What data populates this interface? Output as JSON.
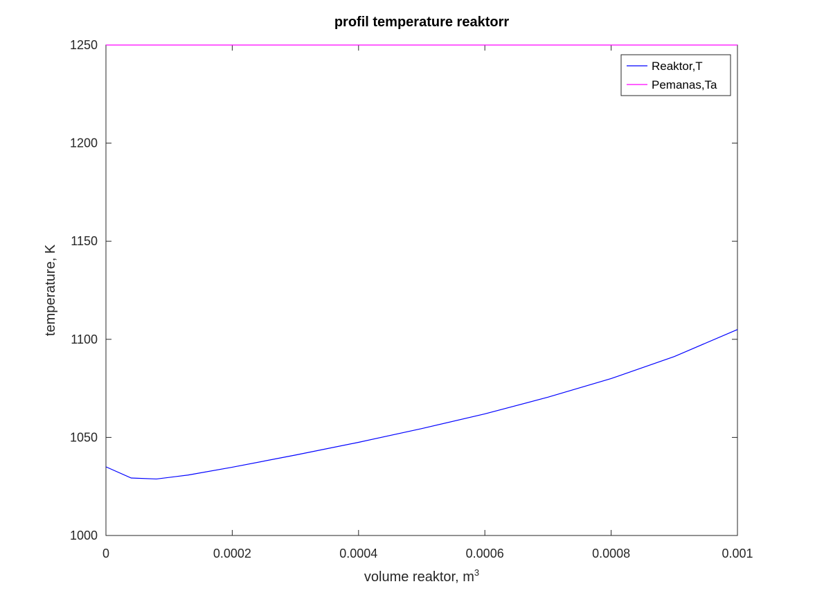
{
  "chart_data": {
    "type": "line",
    "title": "profil temperature reaktorr",
    "xlabel": "volume reaktor, m",
    "xlabel_superscript": "3",
    "ylabel": "temperature, K",
    "xlim": [
      0,
      0.001
    ],
    "ylim": [
      1000,
      1250
    ],
    "x_ticks": [
      0,
      0.0002,
      0.0004,
      0.0006,
      0.0008,
      0.001
    ],
    "x_tick_labels": [
      "0",
      "0.0002",
      "0.0004",
      "0.0006",
      "0.0008",
      "0.001"
    ],
    "y_ticks": [
      1000,
      1050,
      1100,
      1150,
      1200,
      1250
    ],
    "y_tick_labels": [
      "1000",
      "1050",
      "1100",
      "1150",
      "1200",
      "1250"
    ],
    "grid": false,
    "legend_position": "top-right",
    "series": [
      {
        "name": "Reaktor,T",
        "color": "#0000ff",
        "x": [
          0,
          4e-05,
          8e-05,
          0.00013,
          0.0002,
          0.0003,
          0.0004,
          0.0005,
          0.0006,
          0.0007,
          0.0008,
          0.0009,
          0.001
        ],
        "y": [
          1035,
          1029.3,
          1028.8,
          1030.8,
          1034.8,
          1041,
          1047.5,
          1054.5,
          1062,
          1070.5,
          1080,
          1091.2,
          1105
        ]
      },
      {
        "name": "Pemanas,Ta",
        "color": "#ff00ff",
        "x": [
          0,
          0.001
        ],
        "y": [
          1250,
          1250
        ]
      }
    ]
  }
}
